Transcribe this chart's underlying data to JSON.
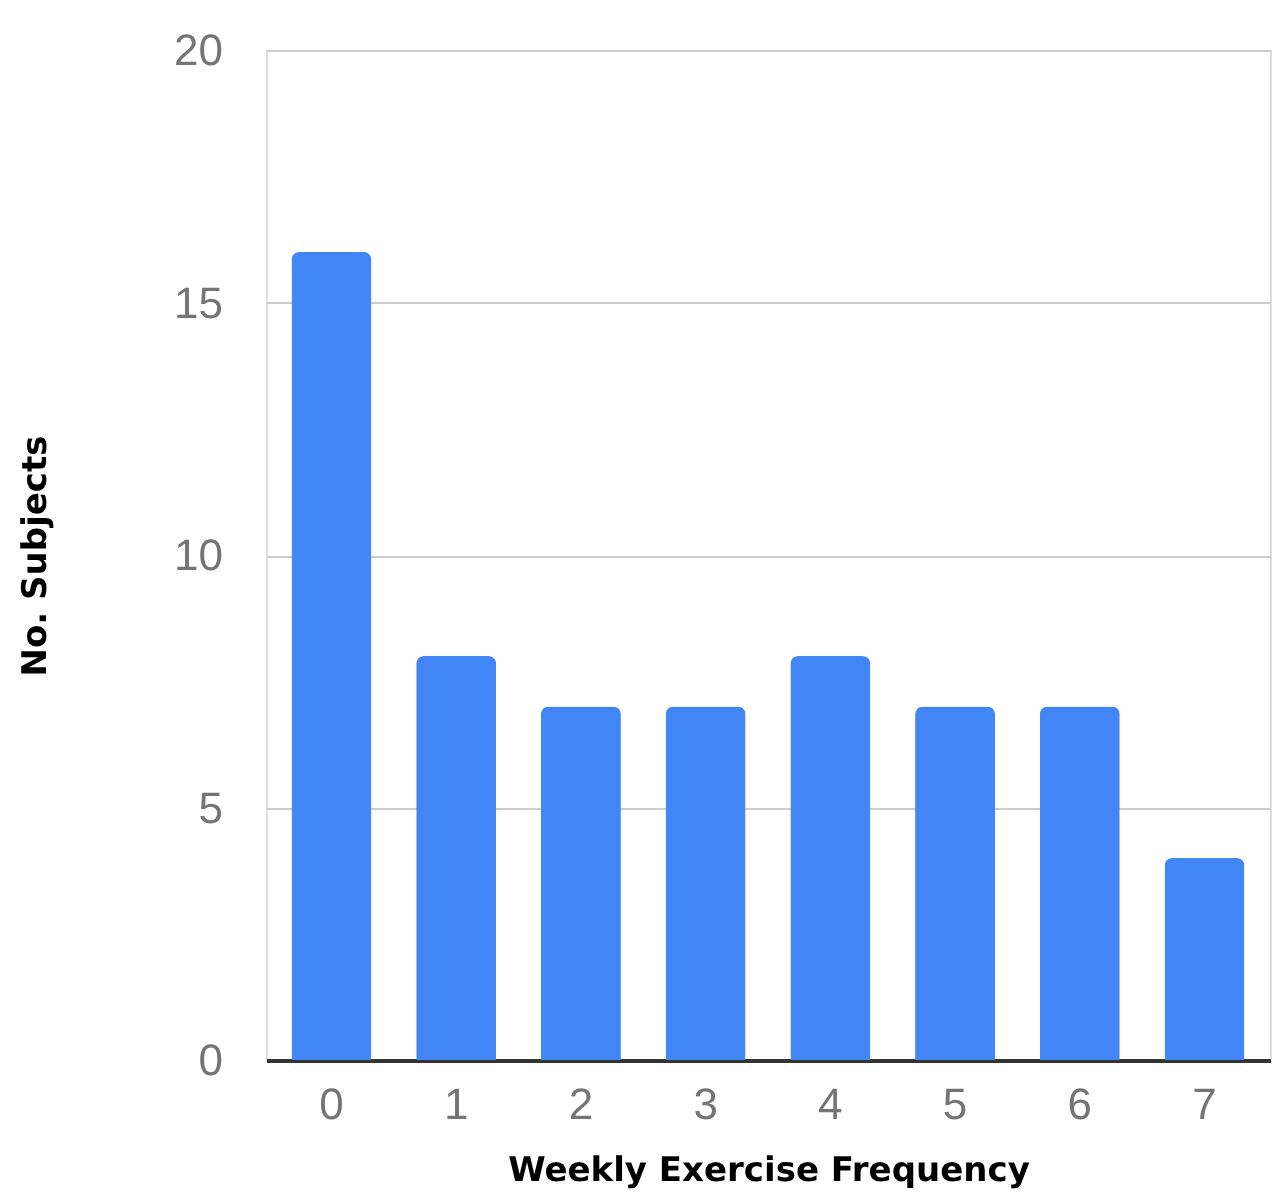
{
  "chart_data": {
    "type": "bar",
    "xlabel": "Weekly Exercise Frequency",
    "ylabel": "No. Subjects",
    "categories": [
      "0",
      "1",
      "2",
      "3",
      "4",
      "5",
      "6",
      "7"
    ],
    "values": [
      16,
      8,
      7,
      7,
      8,
      7,
      7,
      4
    ],
    "color": "#4285f4",
    "ylim": [
      0,
      20
    ],
    "yticks": [
      0,
      5,
      10,
      15,
      20
    ],
    "grid": "y"
  }
}
